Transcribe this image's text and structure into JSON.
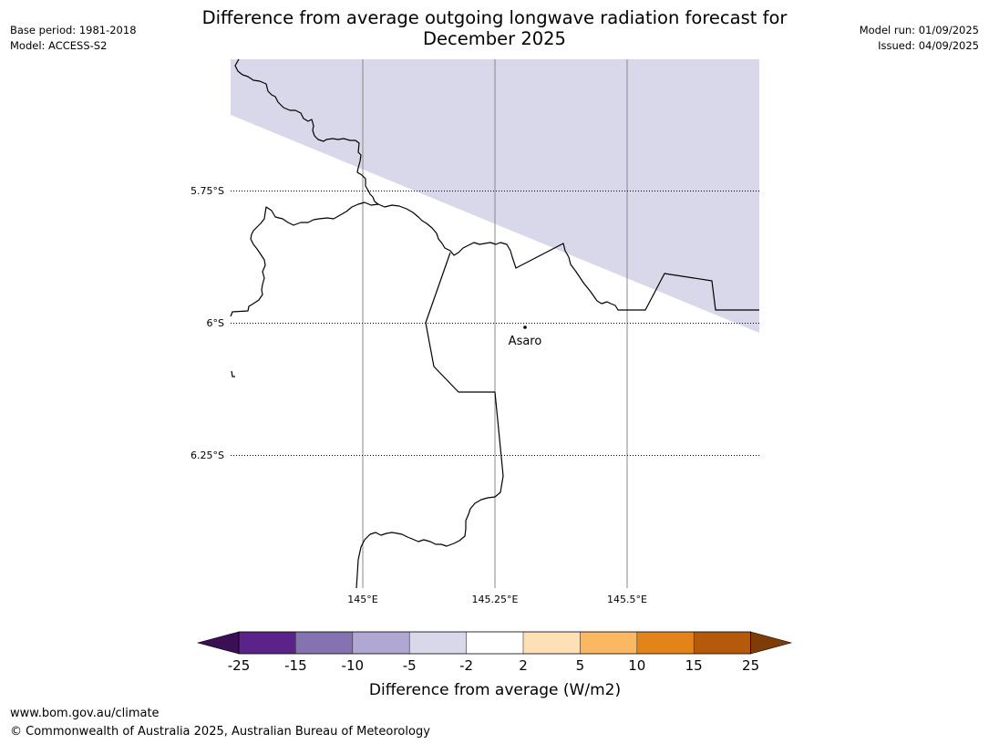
{
  "header": {
    "title_line1": "Difference from average outgoing longwave radiation forecast for",
    "title_line2": "December 2025",
    "base_period": "Base period: 1981-2018",
    "model": "Model: ACCESS-S2",
    "model_run": "Model run: 01/09/2025",
    "issued": "Issued: 04/09/2025"
  },
  "map": {
    "lat_labels": [
      "5.75°S",
      "6°S",
      "6.25°S"
    ],
    "lon_labels": [
      "145°E",
      "145.25°E",
      "145.5°E"
    ],
    "place_label": "Asaro",
    "anomaly_color": "#d8d8ea"
  },
  "legend": {
    "title": "Difference from average (W/m2)",
    "ticks": [
      "-25",
      "-15",
      "-10",
      "-5",
      "-2",
      "2",
      "5",
      "10",
      "15",
      "25"
    ],
    "colors": [
      "#3b0f54",
      "#5a2389",
      "#8573b1",
      "#b0a8d2",
      "#d8d8ea",
      "#ffffff",
      "#fde0b5",
      "#fab862",
      "#e2841a",
      "#b55a0a",
      "#7f3b08"
    ]
  },
  "footer": {
    "url": "www.bom.gov.au/climate",
    "copyright": "© Commonwealth of Australia 2025, Australian Bureau of Meteorology"
  }
}
